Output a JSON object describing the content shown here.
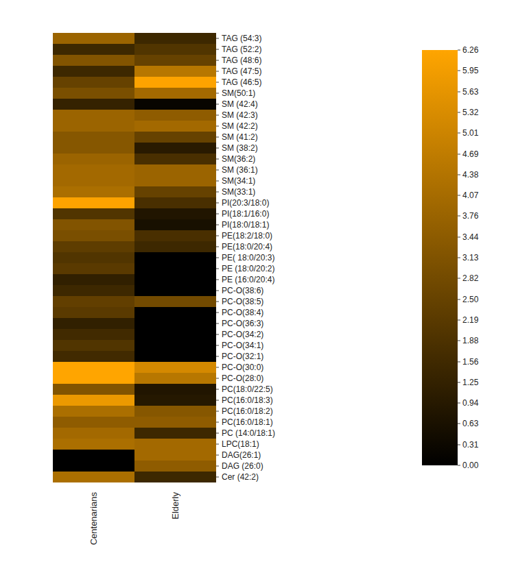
{
  "chart_data": {
    "type": "heatmap",
    "columns": [
      "Centenarians",
      "Elderly"
    ],
    "rows": [
      "TAG (54:3)",
      "TAG (52:2)",
      "TAG (48:6)",
      "TAG (47:5)",
      "TAG (46:5)",
      "SM(50:1)",
      "SM (42:4)",
      "SM (42:3)",
      "SM (42:2)",
      "SM (41:2)",
      "SM (38:2)",
      "SM(36:2)",
      "SM (36:1)",
      "SM(34:1)",
      "SM(33:1)",
      "PI(20:3/18:0)",
      "PI(18:1/16:0)",
      "PI(18:0/18:1)",
      "PE(18:2/18:0)",
      "PE(18:0/20:4)",
      "PE( 18:0/20:3)",
      "PE (18:0/20:2)",
      "PE (16:0/20:4)",
      "PC-O(38:6)",
      "PC-O(38:5)",
      "PC-O(38:4)",
      "PC-O(36:3)",
      "PC-O(34:2)",
      "PC-O(34:1)",
      "PC-O(32:1)",
      "PC-O(30:0)",
      "PC-O(28:0)",
      "PC(18:0/22:5)",
      "PC(16:0/18:3)",
      "PC(16:0/18:2)",
      "PC(16:0/18:1)",
      "PC (14:0/18:1)",
      "LPC(18:1)",
      "DAG(26:1)",
      "DAG (26:0)",
      "Cer (42:2)"
    ],
    "cells": [
      [
        3.8,
        1.5
      ],
      [
        1.5,
        2.0
      ],
      [
        3.2,
        2.5
      ],
      [
        1.5,
        4.5
      ],
      [
        2.5,
        6.2
      ],
      [
        3.0,
        4.0
      ],
      [
        1.3,
        0.2
      ],
      [
        3.8,
        3.5
      ],
      [
        3.8,
        4.0
      ],
      [
        3.3,
        2.5
      ],
      [
        3.3,
        1.0
      ],
      [
        3.8,
        1.8
      ],
      [
        4.0,
        3.8
      ],
      [
        4.0,
        3.8
      ],
      [
        4.2,
        2.5
      ],
      [
        6.2,
        1.8
      ],
      [
        2.0,
        0.8
      ],
      [
        3.2,
        0.6
      ],
      [
        3.0,
        1.8
      ],
      [
        2.3,
        1.5
      ],
      [
        2.0,
        0.0
      ],
      [
        2.2,
        0.0
      ],
      [
        1.2,
        0.0
      ],
      [
        1.5,
        0.0
      ],
      [
        2.4,
        2.8
      ],
      [
        2.2,
        0.0
      ],
      [
        1.2,
        0.0
      ],
      [
        1.6,
        0.0
      ],
      [
        2.0,
        0.0
      ],
      [
        1.6,
        0.0
      ],
      [
        6.26,
        5.2
      ],
      [
        6.26,
        4.5
      ],
      [
        3.2,
        0.8
      ],
      [
        5.8,
        0.9
      ],
      [
        4.2,
        3.3
      ],
      [
        3.5,
        3.5
      ],
      [
        4.0,
        1.5
      ],
      [
        4.2,
        4.0
      ],
      [
        0.0,
        4.0
      ],
      [
        0.0,
        3.5
      ],
      [
        4.2,
        1.5
      ]
    ],
    "colorbar": {
      "range": [
        0,
        6.26
      ],
      "ticks": [
        {
          "value": 0,
          "label": "0.00"
        },
        0.31,
        0.63,
        0.94,
        1.25,
        1.56,
        1.88,
        2.19,
        {
          "value": 2.5,
          "label": "2.50"
        },
        2.82,
        3.13,
        3.44,
        3.76,
        4.07,
        4.38,
        4.69,
        5.01,
        5.32,
        5.63,
        5.95,
        6.26
      ]
    }
  }
}
